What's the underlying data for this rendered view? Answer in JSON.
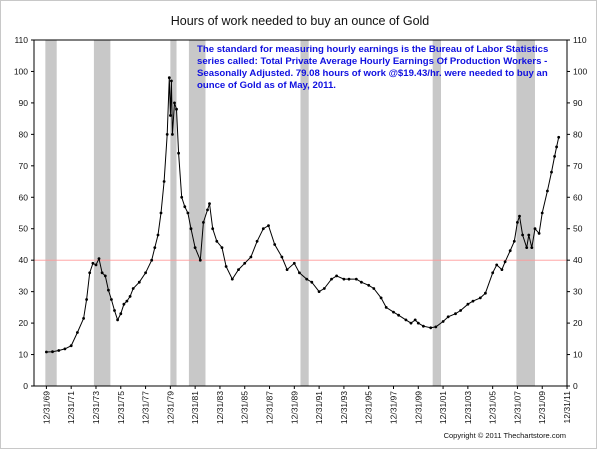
{
  "chart_data": {
    "type": "line",
    "title": "Hours of work needed to buy an ounce of Gold",
    "xlabel": "",
    "ylabel": "",
    "ylim": [
      0,
      110
    ],
    "xlim": [
      "1969-01-01",
      "2011-12-31"
    ],
    "grid": false,
    "legend": "none",
    "y_ticks": [
      0,
      10,
      20,
      30,
      40,
      50,
      60,
      70,
      80,
      90,
      100,
      110
    ],
    "x_ticks": [
      "12/31/69",
      "12/31/71",
      "12/31/73",
      "12/31/75",
      "12/31/77",
      "12/31/79",
      "12/31/81",
      "12/31/83",
      "12/31/85",
      "12/31/87",
      "12/31/89",
      "12/31/91",
      "12/31/93",
      "12/31/95",
      "12/31/97",
      "12/31/99",
      "12/31/01",
      "12/31/03",
      "12/31/05",
      "12/31/07",
      "12/31/09",
      "12/31/11"
    ],
    "reference_line": {
      "y": 40,
      "color": "#ff9999"
    },
    "recession_shading": [
      {
        "start": "1969-12-01",
        "end": "1970-11-01"
      },
      {
        "start": "1973-11-01",
        "end": "1975-03-01"
      },
      {
        "start": "1980-01-01",
        "end": "1980-07-01"
      },
      {
        "start": "1981-07-01",
        "end": "1982-11-01"
      },
      {
        "start": "1990-07-01",
        "end": "1991-03-01"
      },
      {
        "start": "2001-03-01",
        "end": "2001-11-01"
      },
      {
        "start": "2007-12-01",
        "end": "2009-06-01"
      }
    ],
    "series": [
      {
        "color": "#000000",
        "x": [
          "1970-01-01",
          "1970-07-01",
          "1971-01-01",
          "1971-07-01",
          "1972-01-01",
          "1972-07-01",
          "1973-01-01",
          "1973-04-01",
          "1973-07-01",
          "1973-10-01",
          "1974-01-01",
          "1974-04-01",
          "1974-07-01",
          "1974-10-01",
          "1975-01-01",
          "1975-04-01",
          "1975-07-01",
          "1975-10-01",
          "1976-01-01",
          "1976-04-01",
          "1976-07-01",
          "1976-10-01",
          "1977-01-01",
          "1977-07-01",
          "1978-01-01",
          "1978-07-01",
          "1978-10-01",
          "1979-01-01",
          "1979-04-01",
          "1979-07-01",
          "1979-10-01",
          "1979-12-01",
          "1980-01-01",
          "1980-02-01",
          "1980-03-01",
          "1980-05-01",
          "1980-07-01",
          "1980-09-01",
          "1980-12-01",
          "1981-03-01",
          "1981-06-01",
          "1981-09-01",
          "1982-01-01",
          "1982-06-01",
          "1982-09-01",
          "1983-01-01",
          "1983-03-01",
          "1983-06-01",
          "1983-10-01",
          "1984-03-01",
          "1984-07-01",
          "1985-01-01",
          "1985-07-01",
          "1986-01-01",
          "1986-07-01",
          "1987-01-01",
          "1987-07-01",
          "1987-12-01",
          "1988-06-01",
          "1989-01-01",
          "1989-06-01",
          "1990-01-01",
          "1990-06-01",
          "1991-01-01",
          "1991-06-01",
          "1992-01-01",
          "1992-06-01",
          "1993-01-01",
          "1993-06-01",
          "1994-01-01",
          "1994-06-01",
          "1995-01-01",
          "1995-06-01",
          "1996-01-01",
          "1996-06-01",
          "1997-01-01",
          "1997-06-01",
          "1998-01-01",
          "1998-06-01",
          "1999-01-01",
          "1999-06-01",
          "1999-10-01",
          "2000-01-01",
          "2000-06-01",
          "2001-01-01",
          "2001-06-01",
          "2002-01-01",
          "2002-06-01",
          "2003-01-01",
          "2003-06-01",
          "2004-01-01",
          "2004-06-01",
          "2005-01-01",
          "2005-06-01",
          "2006-01-01",
          "2006-05-01",
          "2006-10-01",
          "2007-01-01",
          "2007-06-01",
          "2007-10-01",
          "2008-01-01",
          "2008-03-01",
          "2008-06-01",
          "2008-10-01",
          "2008-12-01",
          "2009-03-01",
          "2009-06-01",
          "2009-10-01",
          "2010-01-01",
          "2010-06-01",
          "2010-10-01",
          "2011-01-01",
          "2011-03-01",
          "2011-05-01"
        ],
        "y": [
          10.8,
          10.9,
          11.3,
          11.8,
          12.8,
          17.0,
          21.5,
          27.5,
          36.0,
          39.0,
          38.5,
          40.5,
          36.0,
          35.0,
          30.5,
          27.5,
          24.0,
          21.0,
          23.0,
          26.0,
          27.0,
          28.5,
          31.0,
          33.0,
          36.0,
          40.0,
          44.0,
          48.0,
          55.0,
          65.0,
          80.0,
          98.0,
          86.0,
          97.0,
          80.0,
          90.0,
          88.0,
          74.0,
          60.0,
          57.0,
          55.0,
          50.0,
          44.0,
          40.0,
          52.0,
          56.0,
          58.0,
          50.0,
          46.0,
          44.0,
          38.0,
          34.0,
          37.0,
          39.0,
          41.0,
          46.0,
          50.0,
          51.0,
          45.0,
          41.0,
          37.0,
          39.0,
          36.0,
          34.0,
          33.0,
          30.0,
          31.0,
          34.0,
          35.0,
          34.0,
          34.0,
          34.0,
          33.0,
          32.0,
          31.0,
          28.0,
          25.0,
          23.5,
          22.5,
          21.0,
          20.0,
          21.0,
          20.0,
          19.0,
          18.5,
          18.8,
          20.5,
          22.0,
          23.0,
          24.0,
          26.0,
          27.0,
          28.0,
          29.5,
          36.0,
          38.5,
          37.0,
          39.5,
          43.0,
          46.0,
          52.0,
          54.0,
          48.0,
          44.0,
          48.0,
          44.0,
          50.0,
          48.5,
          55.0,
          62.0,
          68.0,
          73.0,
          76.0,
          79.08
        ]
      }
    ]
  },
  "annotation": {
    "lines": [
      "The standard for measuring hourly earnings is the Bureau of Labor Statistics",
      "series called:  Total Private Average Hourly Earnings Of Production Workers -",
      "Seasonally Adjusted.  79.08 hours of work @$19.43/hr. were needed to buy an",
      "ounce of Gold as of May, 2011."
    ]
  },
  "copyright": "Copyright © 2011 Thechartstore.com",
  "colors": {
    "line": "#000000",
    "shading": "#c8c8c8",
    "annotation": "#1010e0",
    "reference_line": "#ff9999",
    "axis": "#000000"
  }
}
